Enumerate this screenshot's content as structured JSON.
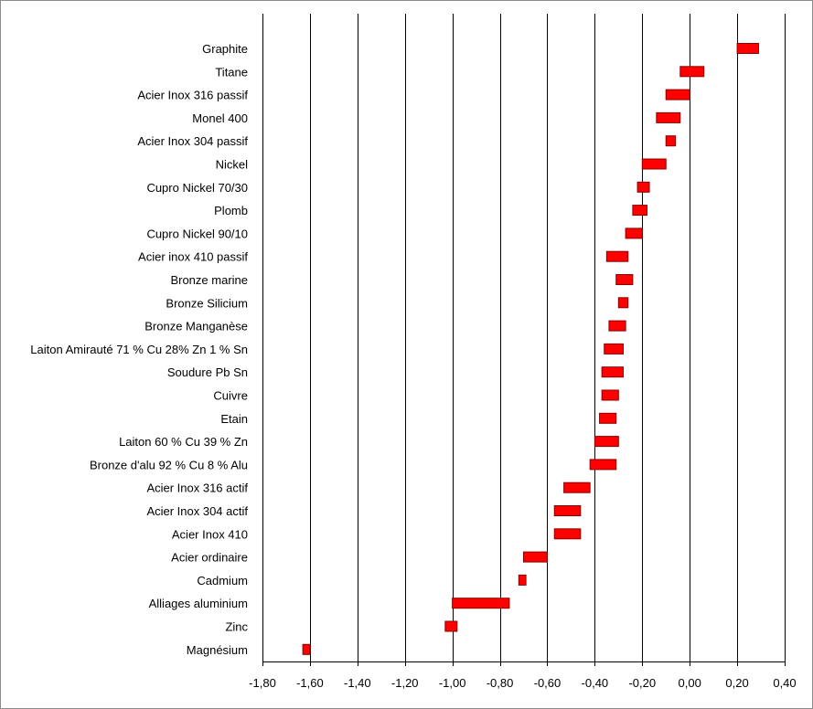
{
  "chart_data": {
    "type": "bar",
    "orientation": "horizontal-range",
    "title": "",
    "xlabel": "",
    "ylabel": "",
    "xlim": [
      -1.8,
      0.4
    ],
    "x_ticks": [
      -1.8,
      -1.6,
      -1.4,
      -1.2,
      -1.0,
      -0.8,
      -0.6,
      -0.4,
      -0.2,
      0.0,
      0.2,
      0.4
    ],
    "x_tick_labels": [
      "-1,80",
      "-1,60",
      "-1,40",
      "-1,20",
      "-1,00",
      "-0,80",
      "-0,60",
      "-0,40",
      "-0,20",
      "0,00",
      "0,20",
      "0,40"
    ],
    "grid": "vertical",
    "colors": {
      "bar_fill": "#ff0000",
      "bar_stroke": "#8b0000",
      "grid": "#000000"
    },
    "categories": [
      "Graphite",
      "Titane",
      "Acier Inox 316 passif",
      "Monel 400",
      "Acier Inox 304 passif",
      "Nickel",
      "Cupro Nickel 70/30",
      "Plomb",
      "Cupro Nickel 90/10",
      "Acier inox 410 passif",
      "Bronze marine",
      "Bronze Silicium",
      "Bronze Manganèse",
      "Laiton Amirauté 71 % Cu 28% Zn 1 % Sn",
      "Soudure Pb Sn",
      "Cuivre",
      "Etain",
      "Laiton 60 % Cu 39 % Zn",
      "Bronze d'alu 92 % Cu 8 % Alu",
      "Acier Inox 316 actif",
      "Acier Inox 304 actif",
      "Acier Inox 410",
      "Acier ordinaire",
      "Cadmium",
      "Alliages aluminium",
      "Zinc",
      "Magnésium"
    ],
    "ranges": [
      [
        0.2,
        0.29
      ],
      [
        -0.04,
        0.06
      ],
      [
        -0.1,
        0.0
      ],
      [
        -0.14,
        -0.04
      ],
      [
        -0.1,
        -0.06
      ],
      [
        -0.2,
        -0.1
      ],
      [
        -0.22,
        -0.17
      ],
      [
        -0.24,
        -0.18
      ],
      [
        -0.27,
        -0.2
      ],
      [
        -0.35,
        -0.26
      ],
      [
        -0.31,
        -0.24
      ],
      [
        -0.3,
        -0.26
      ],
      [
        -0.34,
        -0.27
      ],
      [
        -0.36,
        -0.28
      ],
      [
        -0.37,
        -0.28
      ],
      [
        -0.37,
        -0.3
      ],
      [
        -0.38,
        -0.31
      ],
      [
        -0.4,
        -0.3
      ],
      [
        -0.42,
        -0.31
      ],
      [
        -0.53,
        -0.42
      ],
      [
        -0.57,
        -0.46
      ],
      [
        -0.57,
        -0.46
      ],
      [
        -0.7,
        -0.6
      ],
      [
        -0.72,
        -0.69
      ],
      [
        -1.0,
        -0.76
      ],
      [
        -1.03,
        -0.98
      ],
      [
        -1.63,
        -1.6
      ]
    ]
  }
}
